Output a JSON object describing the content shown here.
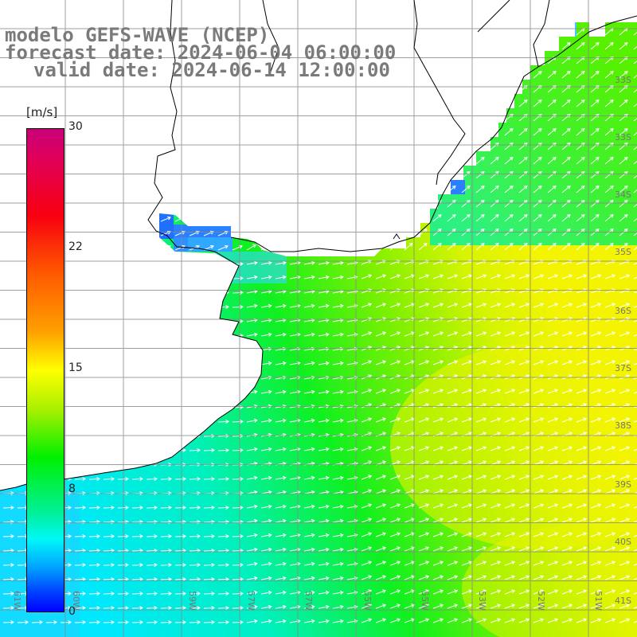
{
  "title": {
    "model": "modelo GEFS-WAVE (NCEP)",
    "forecast": "forecast date: 2024-06-04 06:00:00",
    "valid": "valid date: 2024-06-14 12:00:00"
  },
  "colorbar": {
    "unit": "[m/s]",
    "ticks": [
      "30",
      "22",
      "15",
      "8",
      "0"
    ],
    "colors": [
      "#c8007a",
      "#f80010",
      "#ff5a00",
      "#ffff00",
      "#00f000",
      "#00f8f8",
      "#0000ff"
    ]
  },
  "axes": {
    "lat_labels": [
      "33S",
      "33S",
      "34S",
      "35S",
      "36S",
      "37S",
      "38S",
      "39S",
      "40S",
      "41S"
    ],
    "lon_labels": [
      "61W",
      "60W",
      "59W",
      "57W",
      "57W",
      "55W",
      "55W",
      "53W",
      "52W",
      "51W"
    ]
  },
  "colors": {
    "land": "#ffffff",
    "coast": "#000000",
    "grid": "#888888",
    "vectors": "#ffffff"
  }
}
